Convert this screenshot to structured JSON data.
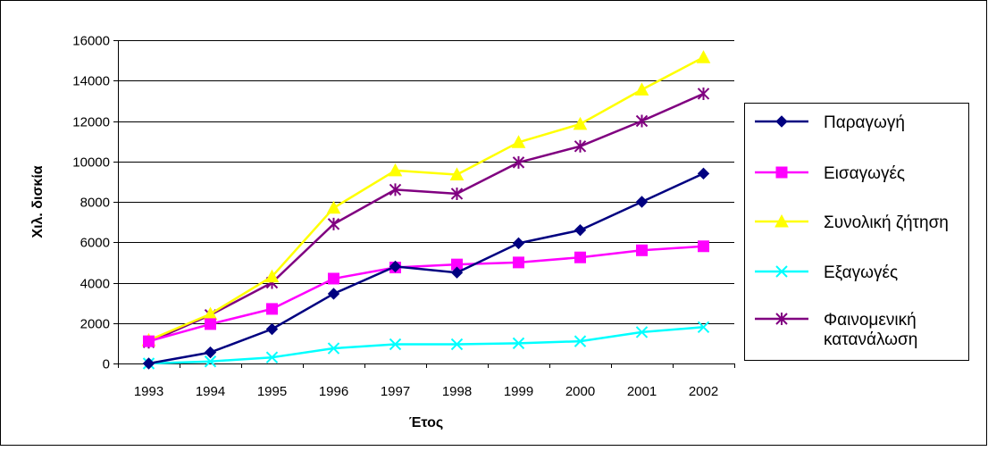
{
  "chart_data": {
    "type": "line",
    "title": "",
    "xlabel": "Έτος",
    "ylabel": "Χιλ. δισκία",
    "categories": [
      "1993",
      "1994",
      "1995",
      "1996",
      "1997",
      "1998",
      "1999",
      "2000",
      "2001",
      "2002"
    ],
    "ylim": [
      0,
      16000
    ],
    "yticks": [
      0,
      2000,
      4000,
      6000,
      8000,
      10000,
      12000,
      14000,
      16000
    ],
    "ytick_labels": [
      "0",
      "2000",
      "4000",
      "6000",
      "8000",
      "10000",
      "12000",
      "14000",
      "16000"
    ],
    "grid": "horizontal",
    "legend_position": "right",
    "series": [
      {
        "name": "Παραγωγή",
        "color": "#000080",
        "marker": "diamond",
        "values": [
          0,
          550,
          1700,
          3450,
          4800,
          4500,
          5950,
          6600,
          8000,
          9400
        ]
      },
      {
        "name": "Εισαγωγές",
        "color": "#ff00ff",
        "marker": "square",
        "values": [
          1100,
          1950,
          2700,
          4200,
          4750,
          4900,
          5000,
          5250,
          5600,
          5800
        ]
      },
      {
        "name": "Συνολική ζήτηση",
        "color": "#ffff00",
        "marker": "triangle",
        "values": [
          1150,
          2450,
          4300,
          7700,
          9550,
          9350,
          10950,
          11850,
          13550,
          15150
        ]
      },
      {
        "name": "Εξαγωγές",
        "color": "#00ffff",
        "marker": "x",
        "values": [
          0,
          100,
          300,
          750,
          950,
          950,
          1000,
          1100,
          1550,
          1800
        ]
      },
      {
        "name": "Φαινομενική κατανάλωση",
        "name_lines": [
          "Φαινομενική",
          "κατανάλωση"
        ],
        "color": "#800080",
        "marker": "star",
        "values": [
          1050,
          2400,
          4000,
          6900,
          8600,
          8400,
          9950,
          10750,
          12000,
          13350
        ]
      }
    ]
  }
}
